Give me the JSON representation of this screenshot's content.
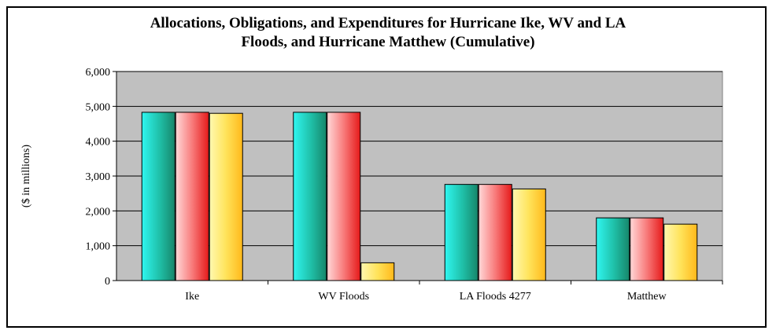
{
  "chart_data": {
    "type": "bar",
    "title_lines": [
      "Allocations, Obligations, and Expenditures for Hurricane Ike, WV and LA",
      "Floods, and Hurricane Matthew (Cumulative)"
    ],
    "xlabel": "",
    "ylabel": "($ in millions)",
    "ylim": [
      0,
      6000
    ],
    "yticks": [
      0,
      1000,
      2000,
      3000,
      4000,
      5000,
      6000
    ],
    "ytick_labels": [
      "0",
      "1,000",
      "2,000",
      "3,000",
      "4,000",
      "5,000",
      "6,000"
    ],
    "categories": [
      "Ike",
      "WV Floods",
      "LA Floods 4277",
      "Matthew"
    ],
    "series": [
      {
        "values": [
          4830,
          4830,
          2760,
          1800
        ],
        "color": "#1aae8e"
      },
      {
        "values": [
          4830,
          4830,
          2760,
          1800
        ],
        "color": "#ee2a2a"
      },
      {
        "values": [
          4800,
          510,
          2630,
          1620
        ],
        "color": "#ffc425"
      }
    ],
    "grid": true,
    "legend": "none",
    "plot_background": "#c0c0c0"
  }
}
